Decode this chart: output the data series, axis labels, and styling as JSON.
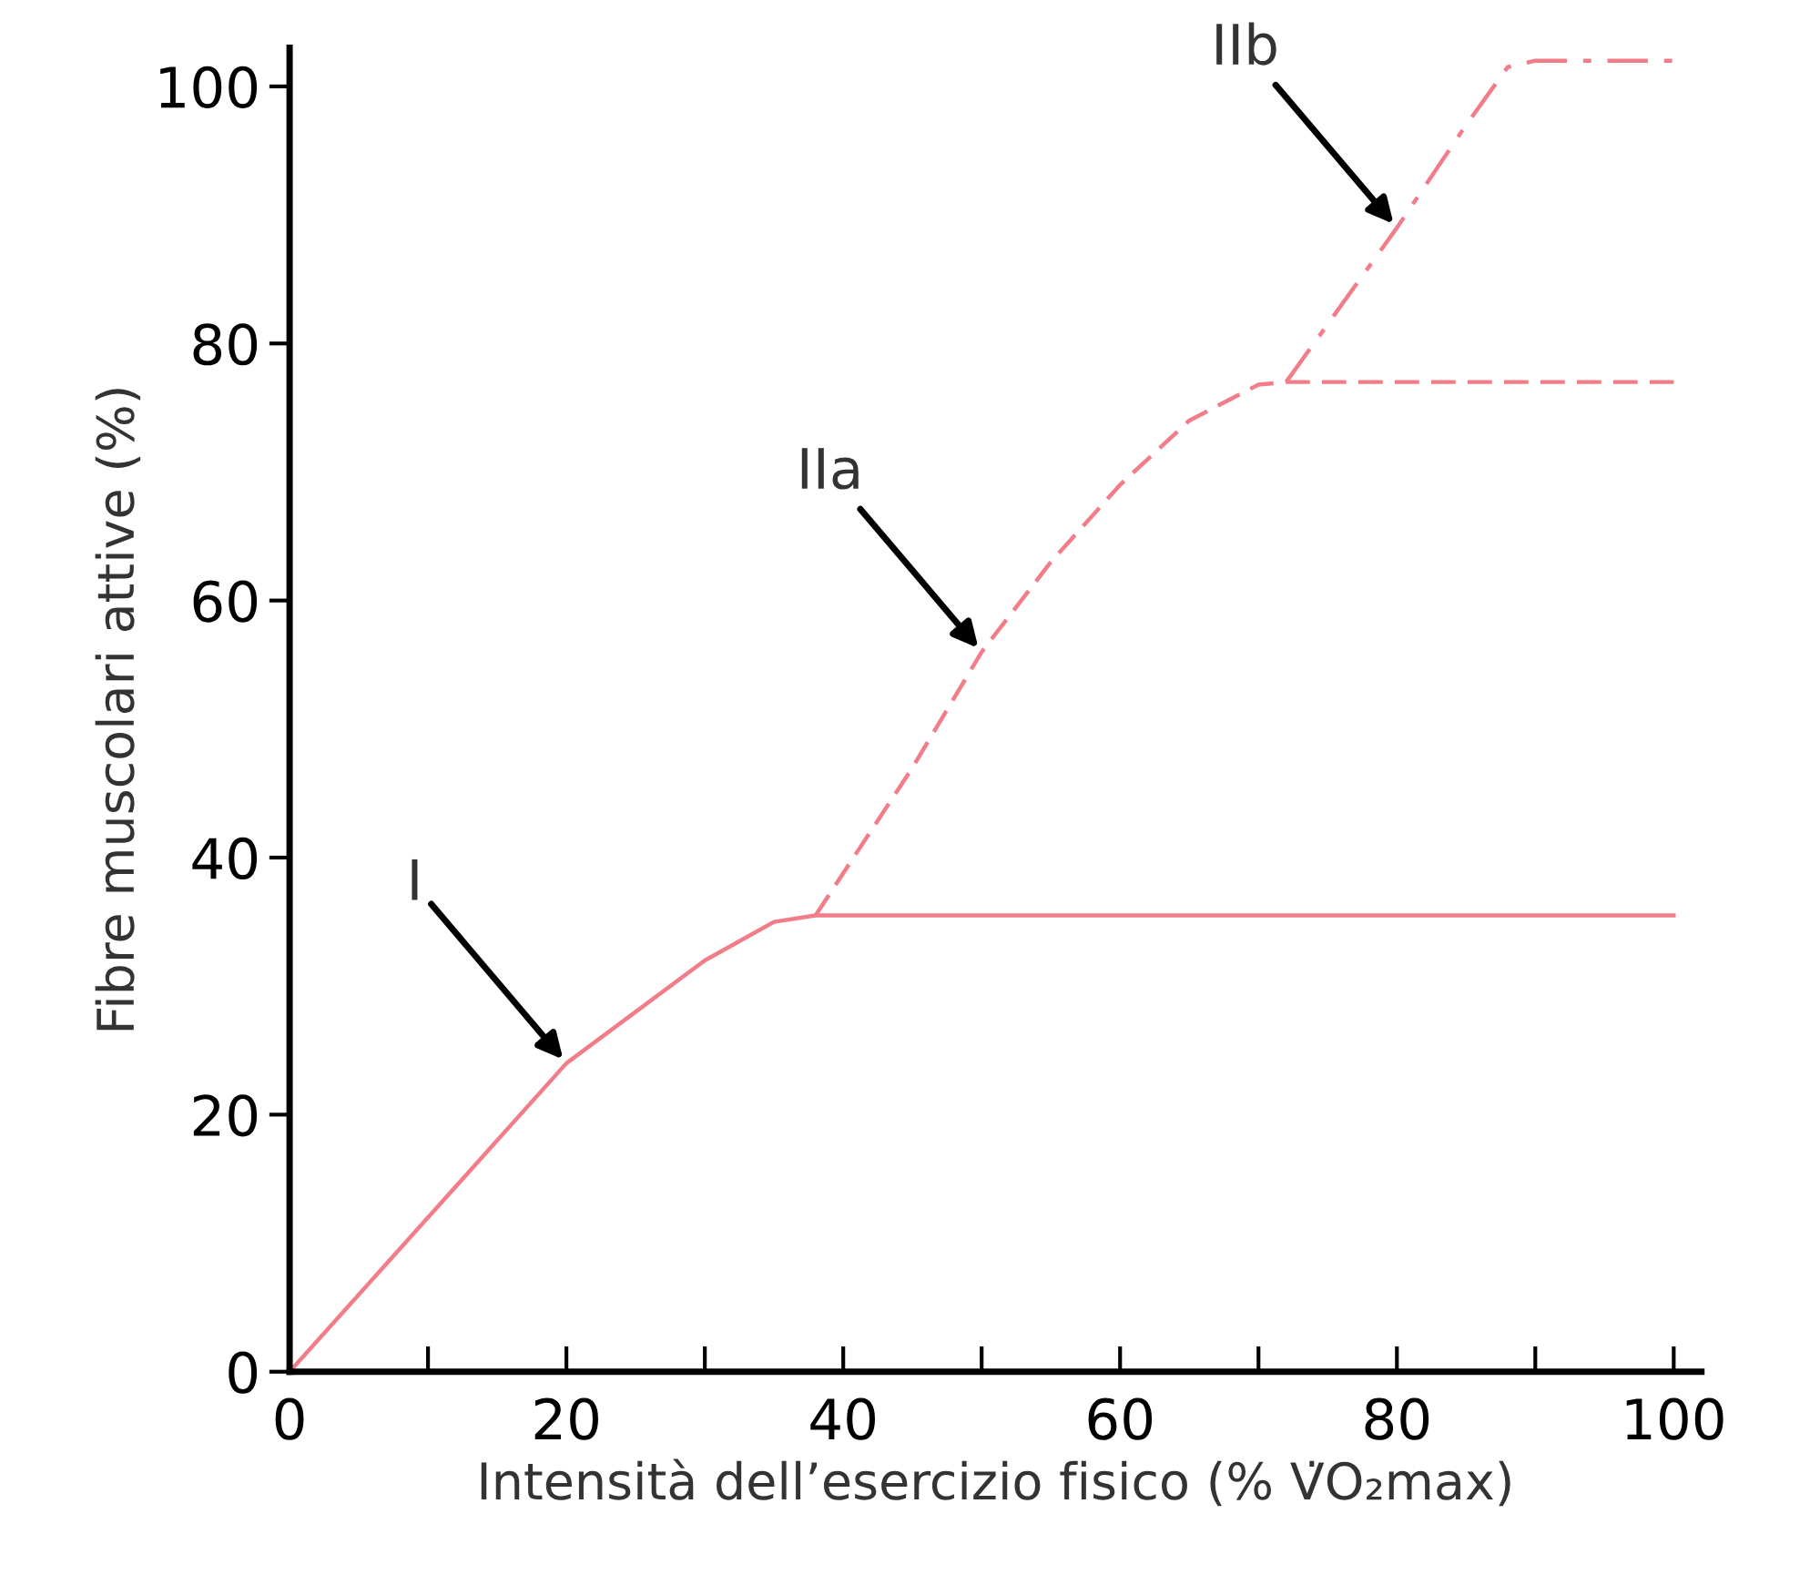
{
  "chart_data": {
    "type": "line",
    "xlabel": "Intensità dell’esercizio fisico (% V̇O₂max)",
    "ylabel": "Fibre muscolari attive (%)",
    "xlim": [
      0,
      102
    ],
    "ylim": [
      0,
      103
    ],
    "xticks": [
      0,
      {
        "value": 10,
        "label": null
      },
      20,
      {
        "value": 30,
        "label": null
      },
      40,
      {
        "value": 50,
        "label": null
      },
      60,
      {
        "value": 70,
        "label": null
      },
      80,
      {
        "value": 90,
        "label": null
      },
      100
    ],
    "yticks": [
      0,
      20,
      40,
      60,
      80,
      100
    ],
    "grid": false,
    "legend": false,
    "marker": "none",
    "series": [
      {
        "color": "#f27c88",
        "line_style": "solid",
        "x": [
          0,
          10,
          20,
          30,
          35,
          38,
          100
        ],
        "values": [
          0,
          12,
          24,
          32,
          35,
          35.5,
          35.5
        ]
      },
      {
        "color": "#f27c88",
        "line_style": "dashed",
        "x": [
          38,
          45,
          50,
          55,
          60,
          65,
          70,
          72,
          100
        ],
        "values": [
          35.5,
          47,
          56,
          63,
          69,
          74,
          76.8,
          77,
          77
        ]
      },
      {
        "color": "#f27c88",
        "line_style": "dashdot",
        "x": [
          72,
          80,
          85,
          88,
          90,
          100
        ],
        "values": [
          77,
          89,
          97,
          101.5,
          102,
          102
        ]
      }
    ],
    "annotations": [
      {
        "text": "I",
        "x": 20,
        "y": 24
      },
      {
        "text": "IIa",
        "x": 50,
        "y": 56
      },
      {
        "text": "IIb",
        "x": 80,
        "y": 89
      }
    ]
  }
}
